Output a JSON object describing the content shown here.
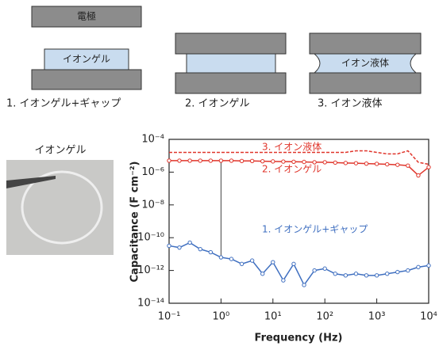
{
  "diagram": {
    "electrode_label": "電極",
    "gel_label": "イオンゲル",
    "liquid_label": "イオン液体",
    "captions": [
      "1. イオンゲル+ギャップ",
      "2. イオンゲル",
      "3. イオン液体"
    ]
  },
  "photo_label": "イオンゲル",
  "chart_data": {
    "type": "line",
    "xlabel": "Frequency (Hz)",
    "ylabel": "Capacitance (F cm⁻²)",
    "xlog": true,
    "ylog": true,
    "xlim": [
      0.1,
      10000
    ],
    "ylim": [
      1e-14,
      0.0001
    ],
    "xticks": [
      {
        "value": 0.1,
        "label": "10⁻¹"
      },
      {
        "value": 1,
        "label": "10⁰"
      },
      {
        "value": 10,
        "label": "10¹"
      },
      {
        "value": 100,
        "label": "10²"
      },
      {
        "value": 1000,
        "label": "10³"
      },
      {
        "value": 10000,
        "label": "10⁴"
      }
    ],
    "yticks": [
      {
        "value": 1e-14,
        "label": "10⁻¹⁴"
      },
      {
        "value": 1e-12,
        "label": "10⁻¹²"
      },
      {
        "value": 1e-10,
        "label": "10⁻¹⁰"
      },
      {
        "value": 1e-08,
        "label": "10⁻⁸"
      },
      {
        "value": 1e-06,
        "label": "10⁻⁶"
      },
      {
        "value": 0.0001,
        "label": "10⁻⁴"
      }
    ],
    "x": [
      0.1,
      0.158,
      0.251,
      0.398,
      0.631,
      1,
      1.585,
      2.512,
      3.981,
      6.31,
      10,
      15.85,
      25.12,
      39.81,
      63.1,
      100,
      158.5,
      251.2,
      398.1,
      631,
      1000,
      1585,
      2512,
      3981,
      6310,
      10000
    ],
    "series": [
      {
        "name": "1. イオンゲル+ギャップ",
        "color": "#3f6fc0",
        "dash": false,
        "values": [
          3.2e-11,
          2.5e-11,
          5e-11,
          2e-11,
          1.3e-11,
          6.3e-12,
          5e-12,
          2.5e-12,
          4e-12,
          6.3e-13,
          3.2e-12,
          2.5e-13,
          2.5e-12,
          1.3e-13,
          1e-12,
          1.3e-12,
          6.3e-13,
          5e-13,
          6.3e-13,
          5e-13,
          5e-13,
          6.3e-13,
          8e-13,
          1e-12,
          1.6e-12,
          2e-12
        ]
      },
      {
        "name": "2. イオンゲル",
        "color": "#e0352b",
        "dash": false,
        "values": [
          5e-06,
          5e-06,
          5e-06,
          5e-06,
          5e-06,
          5e-06,
          5e-06,
          4.8e-06,
          4.8e-06,
          4.6e-06,
          4.5e-06,
          4.4e-06,
          4.3e-06,
          4.2e-06,
          4e-06,
          4e-06,
          3.8e-06,
          3.6e-06,
          3.5e-06,
          3.3e-06,
          3.2e-06,
          3e-06,
          2.8e-06,
          2.5e-06,
          6.3e-07,
          2e-06
        ]
      },
      {
        "name": "3. イオン液体",
        "color": "#e0352b",
        "dash": true,
        "values": [
          1.6e-05,
          1.6e-05,
          1.6e-05,
          1.6e-05,
          1.6e-05,
          1.6e-05,
          1.6e-05,
          1.6e-05,
          1.6e-05,
          1.6e-05,
          1.6e-05,
          1.6e-05,
          1.6e-05,
          1.6e-05,
          1.6e-05,
          1.6e-05,
          1.6e-05,
          1.6e-05,
          2e-05,
          2e-05,
          1.6e-05,
          1.3e-05,
          1.3e-05,
          2e-05,
          4e-06,
          3e-06
        ]
      }
    ]
  }
}
